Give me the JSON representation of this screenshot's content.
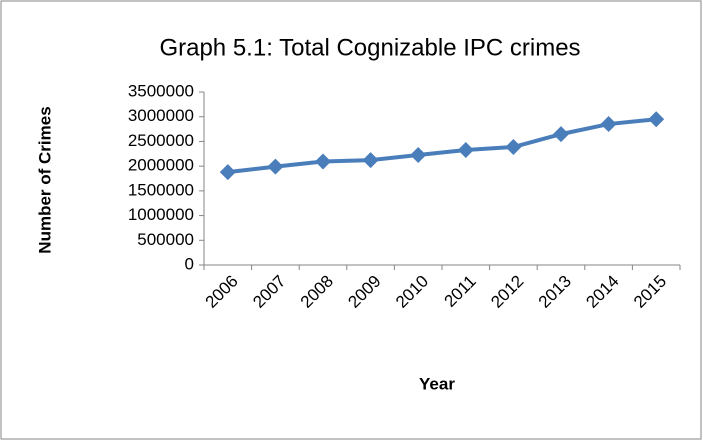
{
  "chart_data": {
    "type": "line",
    "title": "Graph 5.1: Total Cognizable IPC crimes",
    "x_label": "Year",
    "y_label": "Number of Crimes",
    "categories": [
      "2006",
      "2007",
      "2008",
      "2009",
      "2010",
      "2011",
      "2012",
      "2013",
      "2014",
      "2015"
    ],
    "series": [
      {
        "name": "Total Cognizable IPC crimes",
        "color": "#4a7ebb",
        "values": [
          1878293,
          1989673,
          2093379,
          2121345,
          2224831,
          2325575,
          2387188,
          2647722,
          2851563,
          2949400
        ]
      }
    ],
    "ylim": [
      0,
      3500000
    ],
    "yticks": [
      0,
      500000,
      1000000,
      1500000,
      2000000,
      2500000,
      3000000,
      3500000
    ],
    "grid": false,
    "legend": false
  }
}
